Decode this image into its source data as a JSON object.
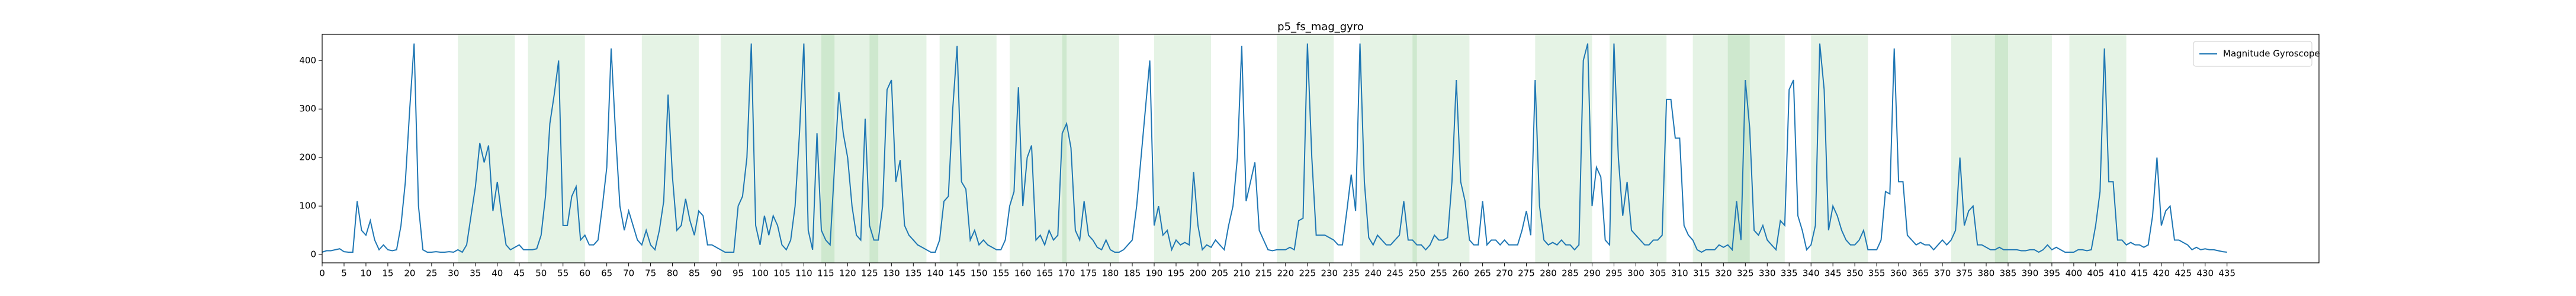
{
  "chart_data": {
    "type": "line",
    "title": "p5_fs_mag_gyro",
    "xlim": [
      0,
      456
    ],
    "ylim": [
      -17,
      454
    ],
    "xticks": [
      0,
      5,
      10,
      15,
      20,
      25,
      30,
      35,
      40,
      45,
      50,
      55,
      60,
      65,
      70,
      75,
      80,
      85,
      90,
      95,
      100,
      105,
      110,
      115,
      120,
      125,
      130,
      135,
      140,
      145,
      150,
      155,
      160,
      165,
      170,
      175,
      180,
      185,
      190,
      195,
      200,
      205,
      210,
      215,
      220,
      225,
      230,
      235,
      240,
      245,
      250,
      255,
      260,
      265,
      270,
      275,
      280,
      285,
      290,
      295,
      300,
      305,
      310,
      315,
      320,
      325,
      330,
      335,
      340,
      345,
      350,
      355,
      360,
      365,
      370,
      375,
      380,
      385,
      390,
      395,
      400,
      405,
      410,
      415,
      420,
      425,
      430,
      435
    ],
    "yticks": [
      0,
      100,
      200,
      300,
      400
    ],
    "legend": "upper right",
    "span_color": "#2ca02c",
    "spans": [
      [
        31,
        44
      ],
      [
        47,
        60
      ],
      [
        73,
        86
      ],
      [
        91,
        104
      ],
      [
        104,
        117
      ],
      [
        114,
        127
      ],
      [
        125,
        138
      ],
      [
        141,
        154
      ],
      [
        157,
        170
      ],
      [
        169,
        182
      ],
      [
        190,
        203
      ],
      [
        218,
        231
      ],
      [
        237,
        250
      ],
      [
        249,
        262
      ],
      [
        277,
        290
      ],
      [
        294,
        307
      ],
      [
        313,
        326
      ],
      [
        321,
        334
      ],
      [
        340,
        353
      ],
      [
        372,
        385
      ],
      [
        382,
        395
      ],
      [
        399,
        412
      ]
    ],
    "x": [
      0,
      1,
      2,
      3,
      4,
      5,
      6,
      7,
      8,
      9,
      10,
      11,
      12,
      13,
      14,
      15,
      16,
      17,
      18,
      19,
      20,
      21,
      22,
      23,
      24,
      25,
      26,
      27,
      28,
      29,
      30,
      31,
      32,
      33,
      34,
      35,
      36,
      37,
      38,
      39,
      40,
      41,
      42,
      43,
      44,
      45,
      46,
      47,
      48,
      49,
      50,
      51,
      52,
      53,
      54,
      55,
      56,
      57,
      58,
      59,
      60,
      61,
      62,
      63,
      64,
      65,
      66,
      67,
      68,
      69,
      70,
      71,
      72,
      73,
      74,
      75,
      76,
      77,
      78,
      79,
      80,
      81,
      82,
      83,
      84,
      85,
      86,
      87,
      88,
      89,
      90,
      91,
      92,
      93,
      94,
      95,
      96,
      97,
      98,
      99,
      100,
      101,
      102,
      103,
      104,
      105,
      106,
      107,
      108,
      109,
      110,
      111,
      112,
      113,
      114,
      115,
      116,
      117,
      118,
      119,
      120,
      121,
      122,
      123,
      124,
      125,
      126,
      127,
      128,
      129,
      130,
      131,
      132,
      133,
      134,
      135,
      136,
      137,
      138,
      139,
      140,
      141,
      142,
      143,
      144,
      145,
      146,
      147,
      148,
      149,
      150,
      151,
      152,
      153,
      154,
      155,
      156,
      157,
      158,
      159,
      160,
      161,
      162,
      163,
      164,
      165,
      166,
      167,
      168,
      169,
      170,
      171,
      172,
      173,
      174,
      175,
      176,
      177,
      178,
      179,
      180,
      181,
      182,
      183,
      184,
      185,
      186,
      187,
      188,
      189,
      190,
      191,
      192,
      193,
      194,
      195,
      196,
      197,
      198,
      199,
      200,
      201,
      202,
      203,
      204,
      205,
      206,
      207,
      208,
      209,
      210,
      211,
      212,
      213,
      214,
      215,
      216,
      217,
      218,
      219,
      220,
      221,
      222,
      223,
      224,
      225,
      226,
      227,
      228,
      229,
      230,
      231,
      232,
      233,
      234,
      235,
      236,
      237,
      238,
      239,
      240,
      241,
      242,
      243,
      244,
      245,
      246,
      247,
      248,
      249,
      250,
      251,
      252,
      253,
      254,
      255,
      256,
      257,
      258,
      259,
      260,
      261,
      262,
      263,
      264,
      265,
      266,
      267,
      268,
      269,
      270,
      271,
      272,
      273,
      274,
      275,
      276,
      277,
      278,
      279,
      280,
      281,
      282,
      283,
      284,
      285,
      286,
      287,
      288,
      289,
      290,
      291,
      292,
      293,
      294,
      295,
      296,
      297,
      298,
      299,
      300,
      301,
      302,
      303,
      304,
      305,
      306,
      307,
      308,
      309,
      310,
      311,
      312,
      313,
      314,
      315,
      316,
      317,
      318,
      319,
      320,
      321,
      322,
      323,
      324,
      325,
      326,
      327,
      328,
      329,
      330,
      331,
      332,
      333,
      334,
      335,
      336,
      337,
      338,
      339,
      340,
      341,
      342,
      343,
      344,
      345,
      346,
      347,
      348,
      349,
      350,
      351,
      352,
      353,
      354,
      355,
      356,
      357,
      358,
      359,
      360,
      361,
      362,
      363,
      364,
      365,
      366,
      367,
      368,
      369,
      370,
      371,
      372,
      373,
      374,
      375,
      376,
      377,
      378,
      379,
      380,
      381,
      382,
      383,
      384,
      385,
      386,
      387,
      388,
      389,
      390,
      391,
      392,
      393,
      394,
      395,
      396,
      397,
      398,
      399,
      400,
      401,
      402,
      403,
      404,
      405,
      406,
      407,
      408,
      409,
      410,
      411,
      412,
      413,
      414,
      415,
      416,
      417,
      418,
      419,
      420,
      421,
      422,
      423,
      424,
      425,
      426,
      427,
      428,
      429,
      430,
      431,
      432,
      433,
      434,
      435
    ],
    "series": [
      {
        "name": "Magnitude Gyroscope",
        "color": "#1f77b4",
        "values": [
          5,
          8,
          8,
          10,
          12,
          6,
          5,
          5,
          110,
          50,
          40,
          70,
          30,
          10,
          20,
          10,
          8,
          10,
          60,
          150,
          300,
          435,
          100,
          10,
          5,
          5,
          6,
          5,
          5,
          6,
          5,
          10,
          5,
          20,
          80,
          140,
          230,
          190,
          225,
          90,
          150,
          80,
          20,
          10,
          15,
          20,
          10,
          10,
          10,
          12,
          40,
          120,
          270,
          330,
          400,
          60,
          60,
          120,
          140,
          30,
          40,
          20,
          20,
          30,
          100,
          180,
          425,
          250,
          100,
          50,
          90,
          60,
          30,
          20,
          50,
          20,
          10,
          50,
          110,
          330,
          160,
          50,
          60,
          115,
          70,
          40,
          90,
          80,
          20,
          20,
          15,
          10,
          5,
          5,
          5,
          100,
          120,
          200,
          435,
          60,
          20,
          80,
          40,
          80,
          60,
          20,
          10,
          30,
          100,
          250,
          435,
          50,
          10,
          250,
          50,
          30,
          20,
          180,
          335,
          250,
          200,
          100,
          40,
          30,
          280,
          60,
          30,
          30,
          100,
          340,
          360,
          150,
          195,
          60,
          40,
          30,
          20,
          15,
          10,
          5,
          5,
          30,
          110,
          120,
          300,
          430,
          150,
          135,
          30,
          50,
          20,
          30,
          20,
          15,
          10,
          10,
          30,
          100,
          130,
          345,
          100,
          200,
          225,
          30,
          40,
          20,
          50,
          30,
          40,
          250,
          270,
          220,
          50,
          30,
          110,
          40,
          30,
          15,
          10,
          30,
          10,
          5,
          5,
          10,
          20,
          30,
          100,
          200,
          300,
          400,
          60,
          100,
          40,
          50,
          10,
          30,
          20,
          25,
          20,
          170,
          60,
          10,
          20,
          15,
          30,
          20,
          10,
          60,
          100,
          200,
          430,
          110,
          150,
          190,
          50,
          30,
          10,
          8,
          10,
          10,
          10,
          15,
          10,
          70,
          75,
          435,
          200,
          40,
          40,
          40,
          35,
          30,
          20,
          20,
          90,
          165,
          90,
          435,
          150,
          35,
          20,
          40,
          30,
          20,
          20,
          30,
          40,
          110,
          30,
          30,
          20,
          20,
          10,
          20,
          40,
          30,
          30,
          35,
          150,
          360,
          150,
          110,
          30,
          20,
          20,
          110,
          20,
          30,
          30,
          20,
          30,
          20,
          20,
          20,
          50,
          90,
          40,
          360,
          100,
          30,
          20,
          25,
          20,
          30,
          20,
          20,
          10,
          20,
          400,
          435,
          100,
          180,
          160,
          30,
          20,
          435,
          200,
          80,
          150,
          50,
          40,
          30,
          20,
          20,
          30,
          30,
          40,
          320,
          320,
          240,
          240,
          60,
          40,
          30,
          10,
          5,
          10,
          10,
          10,
          20,
          15,
          20,
          10,
          110,
          30,
          360,
          260,
          50,
          40,
          60,
          30,
          20,
          10,
          70,
          60,
          340,
          360,
          80,
          50,
          10,
          20,
          60,
          435,
          340,
          50,
          100,
          80,
          50,
          30,
          20,
          20,
          30,
          50,
          10,
          10,
          10,
          30,
          130,
          125,
          425,
          150,
          150,
          40,
          30,
          20,
          25,
          20,
          20,
          10,
          20,
          30,
          20,
          30,
          50,
          200,
          60,
          90,
          100,
          20,
          20,
          15,
          10,
          10,
          15,
          10,
          10,
          10,
          10,
          8,
          8,
          10,
          10,
          5,
          10,
          20,
          10,
          15,
          10,
          5,
          5,
          5,
          10,
          10,
          8,
          10,
          60,
          130,
          425,
          150,
          150,
          30,
          30,
          20,
          25,
          20,
          20,
          15,
          20,
          80,
          200,
          60,
          90,
          100,
          30,
          30,
          25,
          20,
          10,
          15,
          10,
          12,
          10,
          10,
          8,
          6,
          5
        ]
      }
    ]
  }
}
